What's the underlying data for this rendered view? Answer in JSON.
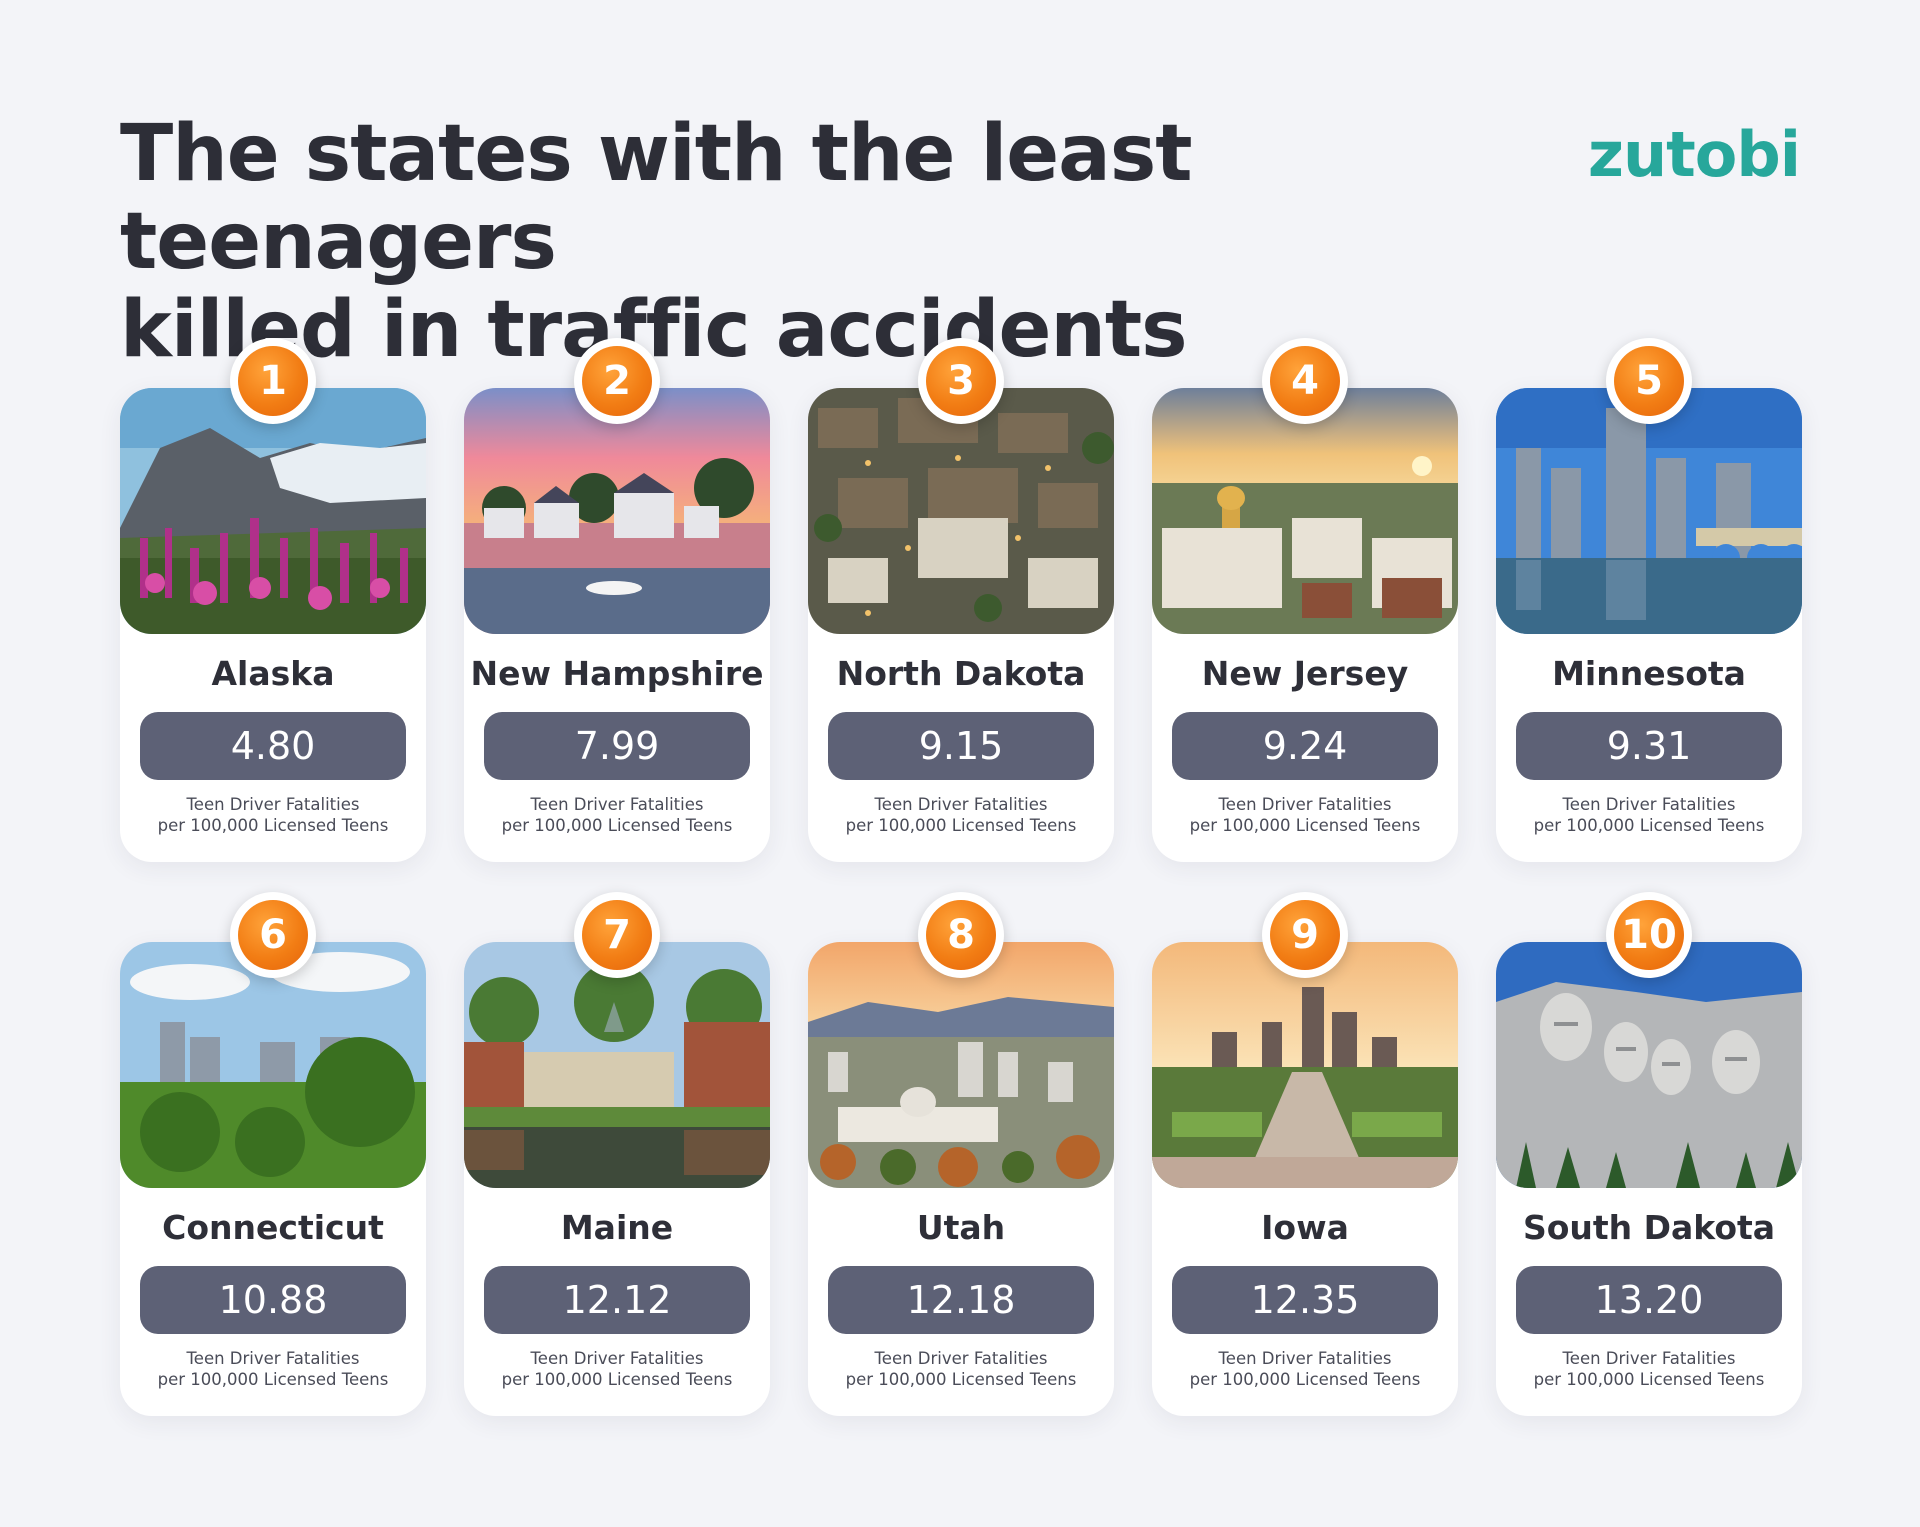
{
  "header": {
    "title_line1": "The states with the least teenagers",
    "title_line2": "killed in traffic accidents",
    "brand": "zutobi"
  },
  "caption": {
    "line1": "Teen Driver Fatalities",
    "line2": "per 100,000 Licensed Teens"
  },
  "states": [
    {
      "rank": "1",
      "name": "Alaska",
      "value": "4.80",
      "photo": "mountain-flowers-image"
    },
    {
      "rank": "2",
      "name": "New Hampshire",
      "value": "7.99",
      "photo": "harbor-sunset-image"
    },
    {
      "rank": "3",
      "name": "North Dakota",
      "value": "9.15",
      "photo": "aerial-town-image"
    },
    {
      "rank": "4",
      "name": "New Jersey",
      "value": "9.24",
      "photo": "capitol-sunset-image"
    },
    {
      "rank": "5",
      "name": "Minnesota",
      "value": "9.31",
      "photo": "city-bridge-image"
    },
    {
      "rank": "6",
      "name": "Connecticut",
      "value": "10.88",
      "photo": "city-park-image"
    },
    {
      "rank": "7",
      "name": "Maine",
      "value": "12.12",
      "photo": "riverside-town-image"
    },
    {
      "rank": "8",
      "name": "Utah",
      "value": "12.18",
      "photo": "capitol-valley-image"
    },
    {
      "rank": "9",
      "name": "Iowa",
      "value": "12.35",
      "photo": "skyline-sunrise-image"
    },
    {
      "rank": "10",
      "name": "South Dakota",
      "value": "13.20",
      "photo": "mount-rushmore-image"
    }
  ],
  "colors": {
    "accent_orange": "#f27d14",
    "brand_teal": "#27a79b",
    "value_pill": "#5d6176",
    "background": "#f3f4f8"
  }
}
